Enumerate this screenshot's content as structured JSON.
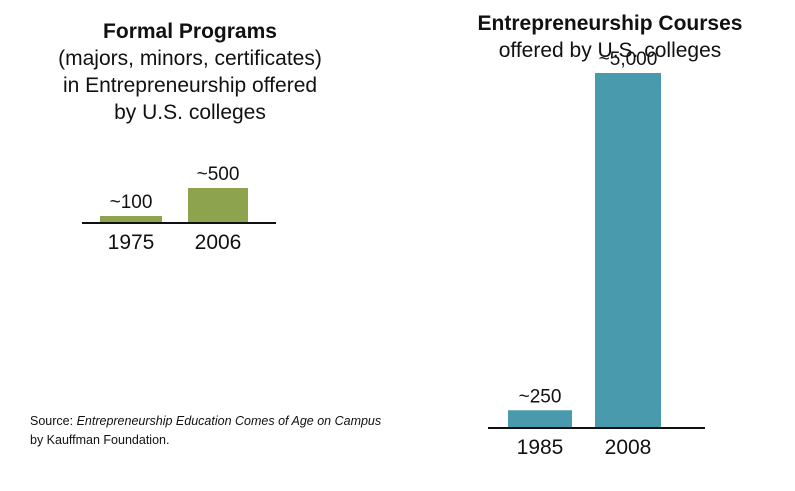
{
  "source": {
    "prefix": "Source: ",
    "title": "Entrepreneurship Education Comes of Age on Campus",
    "suffix": " by Kauffman Foundation."
  },
  "chart_data": [
    {
      "type": "bar",
      "title": "Formal Programs",
      "subtitle": [
        "(majors, minors, certificates)",
        "in Entrepreneurship offered",
        "by U.S. colleges"
      ],
      "categories": [
        "1975",
        "2006"
      ],
      "values": [
        100,
        500
      ],
      "data_labels": [
        "~100",
        "~500"
      ],
      "color": "#8da34e",
      "ylim": [
        0,
        5200
      ]
    },
    {
      "type": "bar",
      "title": "Entrepreneurship Courses",
      "subtitle": [
        "offered by U.S. colleges"
      ],
      "categories": [
        "1985",
        "2008"
      ],
      "values": [
        250,
        5000
      ],
      "data_labels": [
        "~250",
        "~5,000"
      ],
      "color": "#4a9aad",
      "ylim": [
        0,
        5200
      ]
    }
  ]
}
